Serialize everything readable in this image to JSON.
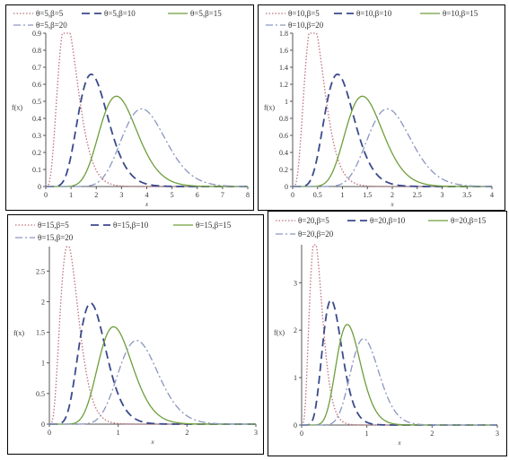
{
  "chart_data": [
    {
      "type": "line",
      "theta": 5,
      "xlabel": "x",
      "ylabel": "f(x)",
      "xlim": [
        0,
        8
      ],
      "ylim": [
        0,
        0.9
      ],
      "xticks": [
        0,
        1,
        2,
        3,
        4,
        5,
        6,
        7,
        8
      ],
      "yticks": [
        0,
        0.1,
        0.2,
        0.3,
        0.4,
        0.5,
        0.6,
        0.7,
        0.8,
        0.9
      ],
      "legend_ncol": 3,
      "series": [
        {
          "name": "θ=5,β=5",
          "beta": 5,
          "color": "#c0707a",
          "dash": "dotted",
          "peak_x": 0.9,
          "peak_y": 0.89
        },
        {
          "name": "θ=5,β=10",
          "beta": 10,
          "color": "#3b4a8c",
          "dash": "dashed",
          "peak_x": 1.9,
          "peak_y": 0.62
        },
        {
          "name": "θ=5,β=15",
          "beta": 15,
          "color": "#6e9e3c",
          "dash": "solid",
          "peak_x": 2.95,
          "peak_y": 0.51
        },
        {
          "name": "θ=5,β=20",
          "beta": 20,
          "color": "#8a96c0",
          "dash": "dashdot",
          "peak_x": 3.95,
          "peak_y": 0.44
        }
      ]
    },
    {
      "type": "line",
      "theta": 10,
      "xlabel": "x",
      "ylabel": "f(x)",
      "xlim": [
        0,
        4
      ],
      "ylim": [
        0,
        1.8
      ],
      "xticks": [
        0,
        0.5,
        1,
        1.5,
        2,
        2.5,
        3,
        3.5,
        4
      ],
      "yticks": [
        0,
        0.2,
        0.4,
        0.6,
        0.8,
        1,
        1.2,
        1.4,
        1.6,
        1.8
      ],
      "legend_ncol": 3,
      "series": [
        {
          "name": "θ=10,β=5",
          "beta": 5,
          "color": "#c0707a",
          "dash": "dotted",
          "peak_x": 0.45,
          "peak_y": 1.78
        },
        {
          "name": "θ=10,β=10",
          "beta": 10,
          "color": "#3b4a8c",
          "dash": "dashed",
          "peak_x": 0.95,
          "peak_y": 1.25
        },
        {
          "name": "θ=10,β=15",
          "beta": 15,
          "color": "#6e9e3c",
          "dash": "solid",
          "peak_x": 1.48,
          "peak_y": 1.02
        },
        {
          "name": "θ=10,β=20",
          "beta": 20,
          "color": "#8a96c0",
          "dash": "dashdot",
          "peak_x": 1.98,
          "peak_y": 0.88
        }
      ]
    },
    {
      "type": "line",
      "theta": 15,
      "xlabel": "x",
      "ylabel": "f(x)",
      "xlim": [
        0,
        3
      ],
      "ylim": [
        0,
        2.9
      ],
      "xticks": [
        0,
        1,
        2,
        3
      ],
      "yticks": [
        0,
        0.5,
        1,
        1.5,
        2,
        2.5
      ],
      "legend_ncol": 3,
      "series": [
        {
          "name": "θ=15,β=5",
          "beta": 5,
          "color": "#c0707a",
          "dash": "dotted",
          "peak_x": 0.3,
          "peak_y": 2.8
        },
        {
          "name": "θ=15,β=10",
          "beta": 10,
          "color": "#3b4a8c",
          "dash": "dashed",
          "peak_x": 0.63,
          "peak_y": 1.9
        },
        {
          "name": "θ=15,β=15",
          "beta": 15,
          "color": "#6e9e3c",
          "dash": "solid",
          "peak_x": 0.98,
          "peak_y": 1.55
        },
        {
          "name": "θ=15,β=20",
          "beta": 20,
          "color": "#8a96c0",
          "dash": "dashdot",
          "peak_x": 1.31,
          "peak_y": 1.33
        }
      ]
    },
    {
      "type": "line",
      "theta": 20,
      "xlabel": "x",
      "ylabel": "f(x)",
      "xlim": [
        0,
        3
      ],
      "ylim": [
        0,
        3.8
      ],
      "xticks": [
        0,
        1,
        2,
        3
      ],
      "yticks": [
        0,
        1,
        2,
        3
      ],
      "legend_ncol": 3,
      "series": [
        {
          "name": "θ=20,β=5",
          "beta": 5,
          "color": "#c0707a",
          "dash": "dotted",
          "peak_x": 0.22,
          "peak_y": 3.75
        },
        {
          "name": "θ=20,β=10",
          "beta": 10,
          "color": "#3b4a8c",
          "dash": "dashed",
          "peak_x": 0.47,
          "peak_y": 2.58
        },
        {
          "name": "θ=20,β=15",
          "beta": 15,
          "color": "#6e9e3c",
          "dash": "solid",
          "peak_x": 0.73,
          "peak_y": 2.08
        },
        {
          "name": "θ=20,β=20",
          "beta": 20,
          "color": "#8a96c0",
          "dash": "dashdot",
          "peak_x": 0.98,
          "peak_y": 1.78
        }
      ]
    }
  ]
}
